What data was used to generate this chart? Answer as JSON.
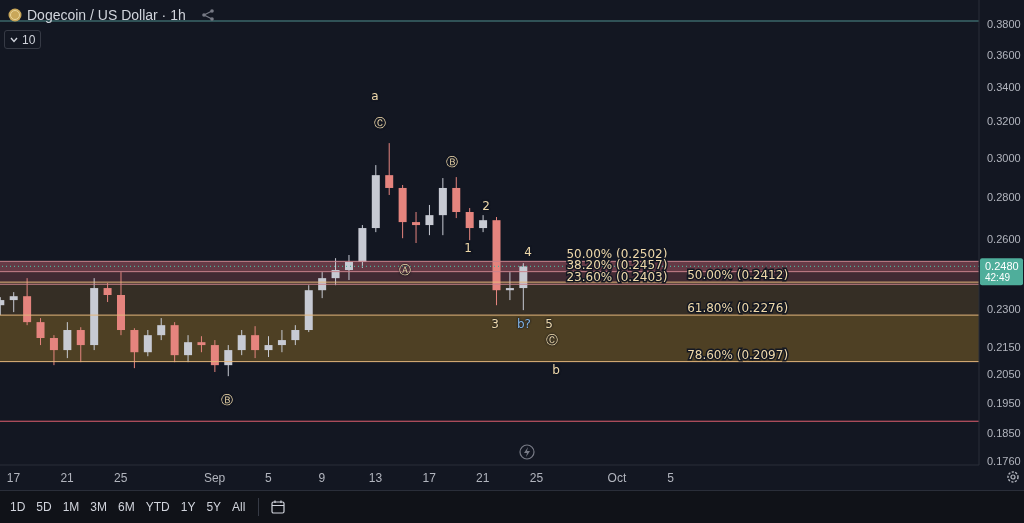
{
  "chart_data": {
    "type": "candlestick",
    "title": "Dogecoin / US Dollar · 1h",
    "x": [
      "--08-16",
      "--08-17",
      "--08-18",
      "--08-19",
      "--08-20",
      "--08-21",
      "--08-22",
      "--08-23",
      "--08-24",
      "--08-25",
      "--08-26",
      "--08-27",
      "--08-28",
      "--08-29",
      "--08-30",
      "--08-31",
      "--09-01",
      "--09-02",
      "--09-03",
      "--09-04",
      "--09-05",
      "--09-06",
      "--09-07",
      "--09-08",
      "--09-09",
      "--09-10",
      "--09-11",
      "--09-12",
      "--09-13",
      "--09-14",
      "--09-15",
      "--09-16",
      "--09-17",
      "--09-18",
      "--09-19",
      "--09-20",
      "--09-21",
      "--09-22",
      "--09-23",
      "--09-24"
    ],
    "ohlc": [
      [
        0.2316,
        0.2349,
        0.2276,
        0.2337
      ],
      [
        0.2337,
        0.237,
        0.2288,
        0.2353
      ],
      [
        0.2353,
        0.2429,
        0.2236,
        0.2248
      ],
      [
        0.2248,
        0.2264,
        0.2159,
        0.2186
      ],
      [
        0.2186,
        0.2197,
        0.2084,
        0.214
      ],
      [
        0.214,
        0.2248,
        0.211,
        0.2217
      ],
      [
        0.2217,
        0.2228,
        0.2095,
        0.2159
      ],
      [
        0.2159,
        0.2429,
        0.214,
        0.2387
      ],
      [
        0.2387,
        0.2408,
        0.2329,
        0.2358
      ],
      [
        0.2358,
        0.2455,
        0.2197,
        0.2217
      ],
      [
        0.2217,
        0.2224,
        0.2073,
        0.2132
      ],
      [
        0.2132,
        0.2217,
        0.2117,
        0.2197
      ],
      [
        0.2197,
        0.2264,
        0.2178,
        0.2236
      ],
      [
        0.2236,
        0.2248,
        0.2095,
        0.2121
      ],
      [
        0.2121,
        0.2197,
        0.2095,
        0.217
      ],
      [
        0.217,
        0.2193,
        0.2132,
        0.2159
      ],
      [
        0.2159,
        0.2178,
        0.2059,
        0.2084
      ],
      [
        0.2084,
        0.2159,
        0.2044,
        0.214
      ],
      [
        0.214,
        0.2217,
        0.2121,
        0.2197
      ],
      [
        0.2197,
        0.2232,
        0.211,
        0.214
      ],
      [
        0.214,
        0.2193,
        0.2114,
        0.2159
      ],
      [
        0.2159,
        0.2217,
        0.2132,
        0.2178
      ],
      [
        0.2178,
        0.2236,
        0.2159,
        0.2217
      ],
      [
        0.2217,
        0.2399,
        0.2209,
        0.2378
      ],
      [
        0.2378,
        0.2455,
        0.2345,
        0.2429
      ],
      [
        0.2429,
        0.2516,
        0.2399,
        0.2464
      ],
      [
        0.2464,
        0.253,
        0.2421,
        0.2499
      ],
      [
        0.2499,
        0.2667,
        0.2473,
        0.2653
      ],
      [
        0.2653,
        0.2964,
        0.2634,
        0.2912
      ],
      [
        0.2912,
        0.3081,
        0.2812,
        0.2847
      ],
      [
        0.2847,
        0.2862,
        0.2606,
        0.2681
      ],
      [
        0.2681,
        0.2729,
        0.2584,
        0.2667
      ],
      [
        0.2667,
        0.2763,
        0.262,
        0.2714
      ],
      [
        0.2714,
        0.2897,
        0.262,
        0.2847
      ],
      [
        0.2847,
        0.2902,
        0.27,
        0.2729
      ],
      [
        0.2729,
        0.2748,
        0.2597,
        0.2653
      ],
      [
        0.2653,
        0.2714,
        0.2634,
        0.269
      ],
      [
        0.269,
        0.2705,
        0.2316,
        0.2378
      ],
      [
        0.2378,
        0.2455,
        0.2337,
        0.2387
      ],
      [
        0.2387,
        0.2494,
        0.2296,
        0.248
      ]
    ],
    "colors": [
      "#c7cad3",
      "#c7cad3",
      "#e5847e",
      "#e5847e",
      "#e5847e",
      "#c7cad3",
      "#e5847e",
      "#c7cad3",
      "#e5847e",
      "#e5847e",
      "#e5847e",
      "#c7cad3",
      "#c7cad3",
      "#e5847e",
      "#c7cad3",
      "#e5847e",
      "#e5847e",
      "#c7cad3",
      "#c7cad3",
      "#e5847e",
      "#c7cad3",
      "#c7cad3",
      "#c7cad3",
      "#c7cad3",
      "#c7cad3",
      "#c7cad3",
      "#c7cad3",
      "#c7cad3",
      "#c7cad3",
      "#e5847e",
      "#e5847e",
      "#e5847e",
      "#c7cad3",
      "#c7cad3",
      "#e5847e",
      "#e5847e",
      "#c7cad3",
      "#e5847e",
      "#c7cad3",
      "#c7cad3"
    ],
    "xlim": [
      "--08-16",
      "--10-28"
    ],
    "xticks": [
      {
        "value": "--08-17",
        "label": "17"
      },
      {
        "value": "--08-21",
        "label": "21"
      },
      {
        "value": "--08-25",
        "label": "25"
      },
      {
        "value": "--09-01",
        "label": "Sep"
      },
      {
        "value": "--09-05",
        "label": "5"
      },
      {
        "value": "--09-09",
        "label": "9"
      },
      {
        "value": "--09-13",
        "label": "13"
      },
      {
        "value": "--09-17",
        "label": "17"
      },
      {
        "value": "--09-21",
        "label": "21"
      },
      {
        "value": "--09-25",
        "label": "25"
      },
      {
        "value": "--10-01",
        "label": "Oct"
      },
      {
        "value": "--10-05",
        "label": "5"
      }
    ],
    "ylim": [
      0.1748,
      0.3964
    ],
    "log": true,
    "yticks": [
      {
        "value": 0.38,
        "label": "0.3800"
      },
      {
        "value": 0.36,
        "label": "0.3600"
      },
      {
        "value": 0.34,
        "label": "0.3400"
      },
      {
        "value": 0.32,
        "label": "0.3200"
      },
      {
        "value": 0.3,
        "label": "0.3000"
      },
      {
        "value": 0.28,
        "label": "0.2800"
      },
      {
        "value": 0.26,
        "label": "0.2600"
      },
      {
        "value": 0.23,
        "label": "0.2300"
      },
      {
        "value": 0.215,
        "label": "0.2150"
      },
      {
        "value": 0.205,
        "label": "0.2050"
      },
      {
        "value": 0.195,
        "label": "0.1950"
      },
      {
        "value": 0.185,
        "label": "0.1850"
      },
      {
        "value": 0.176,
        "label": "0.1760"
      }
    ],
    "bands": [
      {
        "axis": "y",
        "from": 0.2457,
        "to": 0.2502,
        "color": "#7a4450"
      },
      {
        "axis": "y",
        "from": 0.2403,
        "to": 0.2457,
        "color": "#4d3038"
      },
      {
        "axis": "y",
        "from": 0.2276,
        "to": 0.2412,
        "color": "#3e3427"
      },
      {
        "axis": "y",
        "from": 0.2097,
        "to": 0.2276,
        "color": "#5e4b26"
      }
    ],
    "ref_lines": [
      {
        "axis": "y",
        "value": 0.382,
        "color": "#4f8e8c"
      },
      {
        "axis": "y",
        "value": 0.248,
        "label": "0.2480",
        "color": "#4fae9b",
        "line_style": "dotted"
      },
      {
        "axis": "y",
        "value": 0.1888,
        "color": "#e0606e"
      },
      {
        "axis": "y",
        "value": 0.2502,
        "color": "#c9838c"
      },
      {
        "axis": "y",
        "value": 0.2457,
        "color": "#c9838c"
      },
      {
        "axis": "y",
        "value": 0.2403,
        "color": "#c9838c"
      },
      {
        "axis": "y",
        "value": 0.2412,
        "color": "#e3b67c"
      },
      {
        "axis": "y",
        "value": 0.2276,
        "color": "#e3b67c"
      },
      {
        "axis": "y",
        "value": 0.2097,
        "color": "#e3b67c"
      }
    ],
    "annotations": [
      "10",
      "42:49",
      "a",
      "Ⓒ",
      "Ⓑ",
      "2",
      "1",
      "4",
      "Ⓐ",
      "3",
      "b?",
      "5",
      "Ⓒ",
      "b",
      "Ⓑ",
      "1D",
      "5D",
      "1M",
      "3M",
      "6M",
      "YTD",
      "1Y",
      "5Y",
      "All",
      {
        "text": "50.00% (0.2502)",
        "x": "--10-01",
        "y": 0.2502
      },
      {
        "text": "38.20% (0.2457)",
        "x": "--10-01",
        "y": 0.2457
      },
      {
        "text": "23.60% (0.2403)",
        "x": "--10-01",
        "y": 0.2403
      },
      {
        "text": "50.00% (0.2412)",
        "x": "--10-10",
        "y": 0.2412
      },
      {
        "text": "61.80% (0.2276)",
        "x": "--10-10",
        "y": 0.2276
      },
      {
        "text": "78.60% (0.2097)",
        "x": "--10-10",
        "y": 0.2097
      }
    ]
  }
}
